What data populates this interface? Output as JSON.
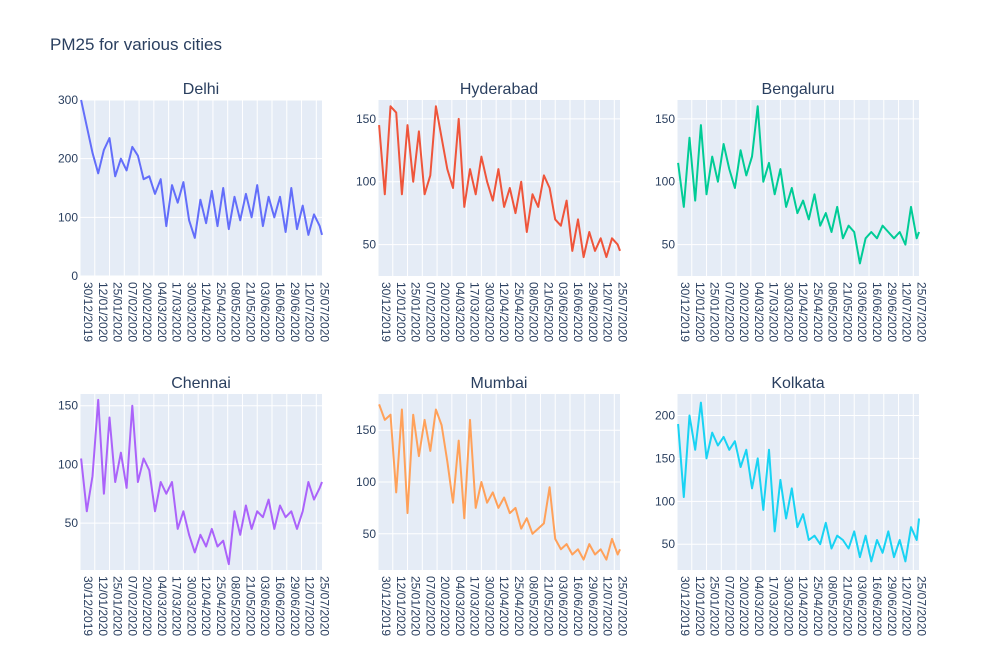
{
  "title": "PM25 for various cities",
  "x_ticks": [
    "30/12/2019",
    "12/01/2020",
    "25/01/2020",
    "07/02/2020",
    "20/02/2020",
    "04/03/2020",
    "17/03/2020",
    "30/03/2020",
    "12/04/2020",
    "25/04/2020",
    "08/05/2020",
    "21/05/2020",
    "03/06/2020",
    "16/06/2020",
    "29/06/2020",
    "12/07/2020",
    "25/07/2020"
  ],
  "chart_data": [
    {
      "type": "line",
      "title": "Delhi",
      "color": "#636efa",
      "ylim": [
        0,
        300
      ],
      "yticks": [
        0,
        100,
        200,
        300
      ],
      "x": [
        "31/12/2019",
        "05/01/2020",
        "10/01/2020",
        "15/01/2020",
        "20/01/2020",
        "25/01/2020",
        "30/01/2020",
        "04/02/2020",
        "09/02/2020",
        "14/02/2020",
        "19/02/2020",
        "24/02/2020",
        "29/02/2020",
        "05/03/2020",
        "10/03/2020",
        "15/03/2020",
        "20/03/2020",
        "25/03/2020",
        "30/03/2020",
        "04/04/2020",
        "09/04/2020",
        "14/04/2020",
        "19/04/2020",
        "24/04/2020",
        "29/04/2020",
        "04/05/2020",
        "09/05/2020",
        "14/05/2020",
        "19/05/2020",
        "24/05/2020",
        "29/05/2020",
        "03/06/2020",
        "08/06/2020",
        "13/06/2020",
        "18/06/2020",
        "23/06/2020",
        "28/06/2020",
        "03/07/2020",
        "08/07/2020",
        "13/07/2020",
        "18/07/2020",
        "23/07/2020",
        "28/07/2020",
        "30/07/2020"
      ],
      "values": [
        300,
        255,
        210,
        175,
        215,
        235,
        170,
        200,
        180,
        220,
        205,
        165,
        170,
        140,
        165,
        85,
        155,
        125,
        160,
        95,
        65,
        130,
        90,
        145,
        85,
        150,
        80,
        135,
        95,
        140,
        100,
        155,
        85,
        135,
        100,
        135,
        75,
        150,
        80,
        120,
        70,
        105,
        85,
        70
      ]
    },
    {
      "type": "line",
      "title": "Hyderabad",
      "color": "#ef553b",
      "ylim": [
        25,
        165
      ],
      "yticks": [
        50,
        100,
        150
      ],
      "x": [
        "31/12/2019",
        "05/01/2020",
        "10/01/2020",
        "15/01/2020",
        "20/01/2020",
        "25/01/2020",
        "30/01/2020",
        "04/02/2020",
        "09/02/2020",
        "14/02/2020",
        "19/02/2020",
        "24/02/2020",
        "29/02/2020",
        "05/03/2020",
        "10/03/2020",
        "15/03/2020",
        "20/03/2020",
        "25/03/2020",
        "30/03/2020",
        "04/04/2020",
        "09/04/2020",
        "14/04/2020",
        "19/04/2020",
        "24/04/2020",
        "29/04/2020",
        "04/05/2020",
        "09/05/2020",
        "14/05/2020",
        "19/05/2020",
        "24/05/2020",
        "29/05/2020",
        "03/06/2020",
        "08/06/2020",
        "13/06/2020",
        "18/06/2020",
        "23/06/2020",
        "28/06/2020",
        "03/07/2020",
        "08/07/2020",
        "13/07/2020",
        "18/07/2020",
        "23/07/2020",
        "28/07/2020",
        "30/07/2020"
      ],
      "values": [
        145,
        90,
        160,
        155,
        90,
        145,
        100,
        140,
        90,
        105,
        160,
        135,
        110,
        95,
        150,
        80,
        110,
        90,
        120,
        100,
        85,
        110,
        80,
        95,
        75,
        100,
        60,
        90,
        80,
        105,
        95,
        70,
        65,
        85,
        45,
        70,
        40,
        60,
        45,
        55,
        40,
        55,
        50,
        45
      ]
    },
    {
      "type": "line",
      "title": "Bengaluru",
      "color": "#00cc96",
      "ylim": [
        25,
        165
      ],
      "yticks": [
        50,
        100,
        150
      ],
      "x": [
        "31/12/2019",
        "05/01/2020",
        "10/01/2020",
        "15/01/2020",
        "20/01/2020",
        "25/01/2020",
        "30/01/2020",
        "04/02/2020",
        "09/02/2020",
        "14/02/2020",
        "19/02/2020",
        "24/02/2020",
        "29/02/2020",
        "05/03/2020",
        "10/03/2020",
        "15/03/2020",
        "20/03/2020",
        "25/03/2020",
        "30/03/2020",
        "04/04/2020",
        "09/04/2020",
        "14/04/2020",
        "19/04/2020",
        "24/04/2020",
        "29/04/2020",
        "04/05/2020",
        "09/05/2020",
        "14/05/2020",
        "19/05/2020",
        "24/05/2020",
        "29/05/2020",
        "03/06/2020",
        "08/06/2020",
        "13/06/2020",
        "18/06/2020",
        "23/06/2020",
        "28/06/2020",
        "03/07/2020",
        "08/07/2020",
        "13/07/2020",
        "18/07/2020",
        "23/07/2020",
        "28/07/2020",
        "30/07/2020"
      ],
      "values": [
        115,
        80,
        135,
        85,
        145,
        90,
        120,
        100,
        130,
        110,
        95,
        125,
        105,
        120,
        160,
        100,
        115,
        90,
        110,
        80,
        95,
        75,
        85,
        70,
        90,
        65,
        75,
        60,
        80,
        55,
        65,
        60,
        35,
        55,
        60,
        55,
        65,
        60,
        55,
        60,
        50,
        80,
        55,
        60
      ]
    },
    {
      "type": "line",
      "title": "Chennai",
      "color": "#ab63fa",
      "ylim": [
        10,
        160
      ],
      "yticks": [
        50,
        100,
        150
      ],
      "x": [
        "31/12/2019",
        "05/01/2020",
        "10/01/2020",
        "15/01/2020",
        "20/01/2020",
        "25/01/2020",
        "30/01/2020",
        "04/02/2020",
        "09/02/2020",
        "14/02/2020",
        "19/02/2020",
        "24/02/2020",
        "29/02/2020",
        "05/03/2020",
        "10/03/2020",
        "15/03/2020",
        "20/03/2020",
        "25/03/2020",
        "30/03/2020",
        "04/04/2020",
        "09/04/2020",
        "14/04/2020",
        "19/04/2020",
        "24/04/2020",
        "29/04/2020",
        "04/05/2020",
        "09/05/2020",
        "14/05/2020",
        "19/05/2020",
        "24/05/2020",
        "29/05/2020",
        "03/06/2020",
        "08/06/2020",
        "13/06/2020",
        "18/06/2020",
        "23/06/2020",
        "28/06/2020",
        "03/07/2020",
        "08/07/2020",
        "13/07/2020",
        "18/07/2020",
        "23/07/2020",
        "28/07/2020",
        "30/07/2020"
      ],
      "values": [
        105,
        60,
        90,
        155,
        75,
        140,
        85,
        110,
        80,
        150,
        85,
        105,
        95,
        60,
        85,
        75,
        85,
        45,
        60,
        40,
        25,
        40,
        30,
        45,
        30,
        35,
        15,
        60,
        40,
        65,
        45,
        60,
        55,
        70,
        45,
        65,
        55,
        60,
        45,
        60,
        85,
        70,
        80,
        85
      ]
    },
    {
      "type": "line",
      "title": "Mumbai",
      "color": "#ffa15a",
      "ylim": [
        15,
        185
      ],
      "yticks": [
        50,
        100,
        150
      ],
      "x": [
        "31/12/2019",
        "05/01/2020",
        "10/01/2020",
        "15/01/2020",
        "20/01/2020",
        "25/01/2020",
        "30/01/2020",
        "04/02/2020",
        "09/02/2020",
        "14/02/2020",
        "19/02/2020",
        "24/02/2020",
        "29/02/2020",
        "05/03/2020",
        "10/03/2020",
        "15/03/2020",
        "20/03/2020",
        "25/03/2020",
        "30/03/2020",
        "04/04/2020",
        "09/04/2020",
        "14/04/2020",
        "19/04/2020",
        "24/04/2020",
        "29/04/2020",
        "04/05/2020",
        "09/05/2020",
        "14/05/2020",
        "19/05/2020",
        "24/05/2020",
        "29/05/2020",
        "03/06/2020",
        "08/06/2020",
        "13/06/2020",
        "18/06/2020",
        "23/06/2020",
        "28/06/2020",
        "03/07/2020",
        "08/07/2020",
        "13/07/2020",
        "18/07/2020",
        "23/07/2020",
        "28/07/2020",
        "30/07/2020"
      ],
      "values": [
        175,
        160,
        165,
        90,
        170,
        70,
        165,
        125,
        160,
        130,
        170,
        155,
        120,
        80,
        140,
        65,
        160,
        75,
        100,
        80,
        90,
        75,
        85,
        70,
        75,
        55,
        65,
        50,
        55,
        60,
        95,
        45,
        35,
        40,
        30,
        35,
        25,
        40,
        30,
        35,
        25,
        45,
        30,
        35
      ]
    },
    {
      "type": "line",
      "title": "Kolkata",
      "color": "#19d3f3",
      "ylim": [
        20,
        225
      ],
      "yticks": [
        50,
        100,
        150,
        200
      ],
      "x": [
        "31/12/2019",
        "05/01/2020",
        "10/01/2020",
        "15/01/2020",
        "20/01/2020",
        "25/01/2020",
        "30/01/2020",
        "04/02/2020",
        "09/02/2020",
        "14/02/2020",
        "19/02/2020",
        "24/02/2020",
        "29/02/2020",
        "05/03/2020",
        "10/03/2020",
        "15/03/2020",
        "20/03/2020",
        "25/03/2020",
        "30/03/2020",
        "04/04/2020",
        "09/04/2020",
        "14/04/2020",
        "19/04/2020",
        "24/04/2020",
        "29/04/2020",
        "04/05/2020",
        "09/05/2020",
        "14/05/2020",
        "19/05/2020",
        "24/05/2020",
        "29/05/2020",
        "03/06/2020",
        "08/06/2020",
        "13/06/2020",
        "18/06/2020",
        "23/06/2020",
        "28/06/2020",
        "03/07/2020",
        "08/07/2020",
        "13/07/2020",
        "18/07/2020",
        "23/07/2020",
        "28/07/2020",
        "30/07/2020"
      ],
      "values": [
        190,
        105,
        200,
        160,
        215,
        150,
        180,
        165,
        175,
        160,
        170,
        140,
        160,
        115,
        150,
        90,
        160,
        65,
        125,
        80,
        115,
        70,
        85,
        55,
        60,
        50,
        75,
        45,
        60,
        55,
        45,
        65,
        35,
        60,
        30,
        55,
        40,
        65,
        35,
        55,
        30,
        70,
        55,
        80
      ]
    }
  ]
}
